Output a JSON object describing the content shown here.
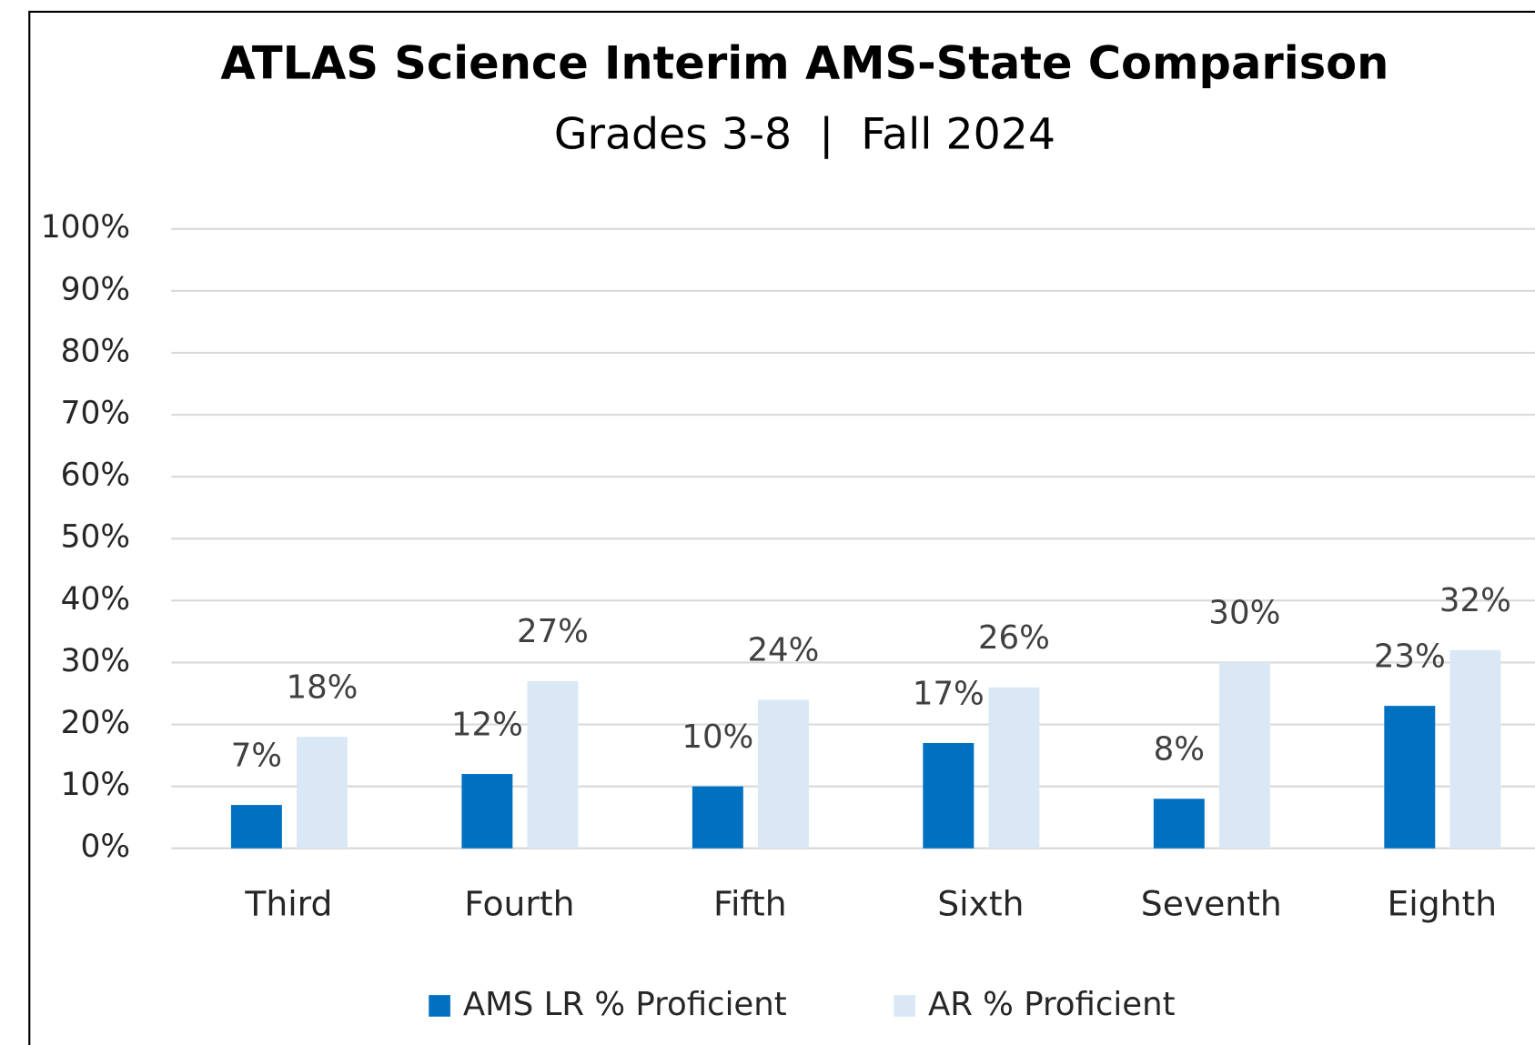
{
  "chart_data": {
    "type": "bar",
    "title": "ATLAS Science Interim AMS-State Comparison",
    "subtitle": "Grades 3-8  |  Fall 2024",
    "categories": [
      "Third",
      "Fourth",
      "Fifth",
      "Sixth",
      "Seventh",
      "Eighth"
    ],
    "series": [
      {
        "name": "AMS LR % Proficient",
        "color": "#0070c0",
        "values": [
          7,
          12,
          10,
          17,
          8,
          23
        ],
        "value_labels": [
          "7%",
          "12%",
          "10%",
          "17%",
          "8%",
          "23%"
        ]
      },
      {
        "name": "AR % Proficient",
        "color": "#dae8f6",
        "values": [
          18,
          27,
          24,
          26,
          30,
          32
        ],
        "value_labels": [
          "18%",
          "27%",
          "24%",
          "26%",
          "30%",
          "32%"
        ]
      }
    ],
    "ylim": [
      0,
      100
    ],
    "yticks": [
      {
        "value": 0,
        "label": "0%"
      },
      {
        "value": 10,
        "label": "10%"
      },
      {
        "value": 20,
        "label": "20%"
      },
      {
        "value": 30,
        "label": "30%"
      },
      {
        "value": 40,
        "label": "40%"
      },
      {
        "value": 50,
        "label": "50%"
      },
      {
        "value": 60,
        "label": "60%"
      },
      {
        "value": 70,
        "label": "70%"
      },
      {
        "value": 80,
        "label": "80%"
      },
      {
        "value": 90,
        "label": "90%"
      },
      {
        "value": 100,
        "label": "100%"
      }
    ],
    "grid": true,
    "legend": "bottom"
  }
}
